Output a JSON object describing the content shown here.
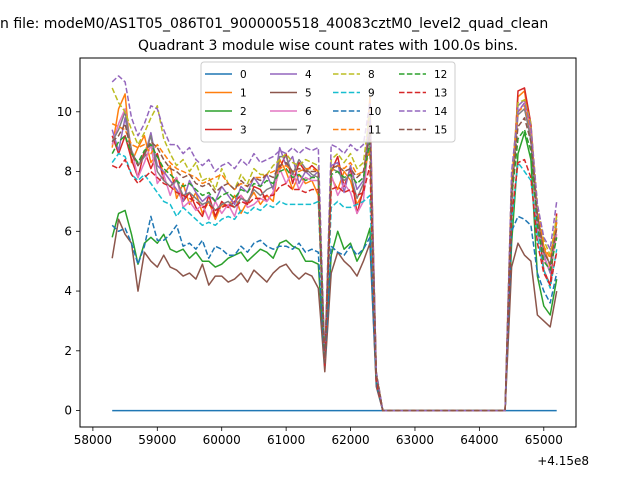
{
  "suptitle": "n file: modeM0/AS1T05_086T01_9000005518_40083cztM0_level2_quad_clean",
  "chart_data": {
    "type": "line",
    "title": "Quadrant 3 module wise count rates with 100.0s bins.",
    "xlabel": "",
    "ylabel": "",
    "offset_text": "+4.15e8",
    "xlim": [
      57800,
      65500
    ],
    "ylim": [
      -0.55,
      11.8
    ],
    "xticks": [
      58000,
      59000,
      60000,
      61000,
      62000,
      63000,
      64000,
      65000
    ],
    "yticks": [
      0,
      2,
      4,
      6,
      8,
      10
    ],
    "grid": false,
    "legend": {
      "placement": "upper center",
      "ncol": 4
    },
    "x": [
      58300,
      58400,
      58500,
      58600,
      58700,
      58800,
      58900,
      59000,
      59100,
      59200,
      59300,
      59400,
      59500,
      59600,
      59700,
      59800,
      59900,
      60000,
      60100,
      60200,
      60300,
      60400,
      60500,
      60600,
      60700,
      60800,
      60900,
      61000,
      61100,
      61200,
      61300,
      61400,
      61500,
      61600,
      61700,
      61800,
      61900,
      62000,
      62100,
      62200,
      62300,
      62400,
      62500,
      62600,
      62700,
      62800,
      62900,
      63000,
      63100,
      63200,
      63300,
      63400,
      63500,
      63600,
      63700,
      63800,
      63900,
      64000,
      64100,
      64200,
      64300,
      64400,
      64500,
      64600,
      64700,
      64800,
      64900,
      65000,
      65100,
      65200
    ],
    "series": [
      {
        "name": "0",
        "color": "#1f77b4",
        "style": "solid",
        "values": [
          0,
          0,
          0,
          0,
          0,
          0,
          0,
          0,
          0,
          0,
          0,
          0,
          0,
          0,
          0,
          0,
          0,
          0,
          0,
          0,
          0,
          0,
          0,
          0,
          0,
          0,
          0,
          0,
          0,
          0,
          0,
          0,
          0,
          0,
          0,
          0,
          0,
          0,
          0,
          0,
          0,
          0,
          0,
          0,
          0,
          0,
          0,
          0,
          0,
          0,
          0,
          0,
          0,
          0,
          0,
          0,
          0,
          0,
          0,
          0,
          0,
          0,
          0,
          0,
          0,
          0,
          0,
          0,
          0,
          0
        ]
      },
      {
        "name": "1",
        "color": "#ff7f0e",
        "style": "solid",
        "values": [
          8.8,
          10.1,
          10.6,
          8.3,
          8.8,
          9.2,
          8.3,
          8.6,
          7.9,
          8.2,
          7.1,
          7.6,
          6.9,
          7.3,
          6.6,
          7.0,
          6.4,
          6.9,
          6.8,
          7.2,
          6.6,
          7.0,
          7.3,
          6.9,
          7.2,
          7.0,
          8.4,
          8.0,
          7.4,
          7.9,
          7.6,
          7.7,
          7.2,
          1.5,
          7.8,
          7.4,
          8.0,
          7.7,
          6.9,
          7.3,
          10.5,
          1.0,
          0,
          0,
          0,
          0,
          0,
          0,
          0,
          0,
          0,
          0,
          0,
          0,
          0,
          0,
          0,
          0,
          0,
          0,
          0,
          0,
          7.5,
          10.5,
          10.7,
          9.2,
          6.5,
          5.5,
          4.8,
          6.1
        ]
      },
      {
        "name": "2",
        "color": "#2ca02c",
        "style": "solid",
        "values": [
          5.8,
          6.6,
          6.7,
          5.9,
          4.9,
          5.6,
          5.8,
          5.6,
          5.9,
          5.4,
          5.3,
          5.4,
          5.1,
          5.3,
          5.0,
          5.0,
          4.8,
          4.9,
          5.1,
          5.2,
          5.3,
          5.0,
          5.2,
          5.4,
          5.3,
          5.1,
          5.6,
          5.7,
          5.5,
          5.4,
          5.0,
          5.0,
          4.9,
          1.5,
          5.2,
          6.0,
          5.4,
          5.6,
          5.0,
          5.4,
          6.1,
          0.9,
          0,
          0,
          0,
          0,
          0,
          0,
          0,
          0,
          0,
          0,
          0,
          0,
          0,
          0,
          0,
          0,
          0,
          0,
          0,
          0,
          5.6,
          8.6,
          9.3,
          8.4,
          4.5,
          3.5,
          3.2,
          4.4
        ]
      },
      {
        "name": "3",
        "color": "#d62728",
        "style": "solid",
        "values": [
          9.2,
          8.6,
          9.2,
          8.4,
          7.8,
          8.7,
          8.1,
          8.6,
          7.7,
          7.5,
          7.8,
          7.0,
          7.3,
          6.8,
          6.5,
          7.2,
          6.5,
          7.0,
          6.8,
          7.0,
          7.2,
          6.9,
          7.5,
          7.4,
          7.0,
          7.3,
          8.1,
          8.6,
          7.6,
          8.3,
          8.0,
          8.2,
          8.0,
          1.4,
          8.0,
          8.5,
          7.5,
          8.1,
          6.6,
          7.4,
          9.8,
          1.2,
          0,
          0,
          0,
          0,
          0,
          0,
          0,
          0,
          0,
          0,
          0,
          0,
          0,
          0,
          0,
          0,
          0,
          0,
          0,
          0,
          6.8,
          10.7,
          10.8,
          9.6,
          6.4,
          4.7,
          4.2,
          6.6
        ]
      },
      {
        "name": "4",
        "color": "#9467bd",
        "style": "solid",
        "values": [
          9.4,
          8.7,
          9.8,
          8.7,
          8.2,
          8.5,
          9.3,
          8.2,
          8.0,
          7.7,
          7.4,
          7.0,
          7.7,
          7.3,
          7.0,
          7.2,
          7.0,
          7.5,
          7.2,
          6.9,
          7.5,
          7.3,
          7.8,
          7.5,
          7.9,
          7.4,
          8.8,
          8.2,
          8.5,
          7.6,
          8.0,
          7.8,
          8.0,
          1.6,
          8.2,
          8.3,
          7.3,
          8.2,
          7.4,
          7.7,
          9.9,
          1.1,
          0,
          0,
          0,
          0,
          0,
          0,
          0,
          0,
          0,
          0,
          0,
          0,
          0,
          0,
          0,
          0,
          0,
          0,
          0,
          0,
          7.3,
          10.2,
          10.4,
          9.0,
          6.0,
          5.2,
          4.6,
          6.4
        ]
      },
      {
        "name": "5",
        "color": "#8c564b",
        "style": "solid",
        "values": [
          5.1,
          6.4,
          5.9,
          5.6,
          4.0,
          5.3,
          5.0,
          4.8,
          5.2,
          4.8,
          4.7,
          4.5,
          4.6,
          4.4,
          4.9,
          4.2,
          4.5,
          4.5,
          4.3,
          4.4,
          4.6,
          4.3,
          4.7,
          4.5,
          4.3,
          4.6,
          4.8,
          4.9,
          4.6,
          4.4,
          4.6,
          4.5,
          4.1,
          1.3,
          4.6,
          5.3,
          5.0,
          4.8,
          4.5,
          5.0,
          5.6,
          0.8,
          0,
          0,
          0,
          0,
          0,
          0,
          0,
          0,
          0,
          0,
          0,
          0,
          0,
          0,
          0,
          0,
          0,
          0,
          0,
          0,
          4.8,
          5.6,
          5.2,
          5.0,
          3.2,
          3.0,
          2.8,
          4.0
        ]
      },
      {
        "name": "6",
        "color": "#e377c2",
        "style": "solid",
        "values": [
          8.9,
          9.6,
          10.1,
          8.7,
          7.8,
          8.3,
          8.9,
          7.6,
          7.9,
          7.2,
          7.8,
          6.8,
          7.0,
          6.7,
          6.9,
          6.4,
          7.0,
          6.6,
          6.9,
          6.5,
          7.2,
          6.8,
          6.9,
          7.1,
          7.0,
          7.3,
          8.1,
          7.6,
          8.0,
          7.4,
          7.8,
          7.7,
          7.7,
          1.7,
          7.9,
          7.2,
          7.6,
          7.3,
          6.6,
          7.0,
          9.6,
          1.1,
          0,
          0,
          0,
          0,
          0,
          0,
          0,
          0,
          0,
          0,
          0,
          0,
          0,
          0,
          0,
          0,
          0,
          0,
          0,
          0,
          7.0,
          10.0,
          10.3,
          9.3,
          6.2,
          5.1,
          4.7,
          5.9
        ]
      },
      {
        "name": "7",
        "color": "#7f7f7f",
        "style": "solid",
        "values": [
          9.0,
          9.4,
          10.0,
          8.7,
          8.2,
          8.5,
          9.2,
          8.0,
          7.7,
          7.5,
          7.7,
          7.2,
          7.3,
          7.1,
          6.9,
          7.0,
          6.7,
          6.9,
          7.0,
          6.8,
          7.1,
          7.0,
          7.4,
          7.2,
          7.4,
          7.5,
          8.5,
          8.5,
          7.9,
          8.4,
          8.1,
          7.9,
          7.8,
          1.6,
          8.1,
          8.0,
          7.7,
          7.9,
          7.1,
          7.6,
          9.4,
          1.2,
          0,
          0,
          0,
          0,
          0,
          0,
          0,
          0,
          0,
          0,
          0,
          0,
          0,
          0,
          0,
          0,
          0,
          0,
          0,
          0,
          7.2,
          9.9,
          10.1,
          9.1,
          6.6,
          5.3,
          4.9,
          6.3
        ]
      },
      {
        "name": "8",
        "color": "#bcbd22",
        "style": "dashed",
        "values": [
          10.8,
          10.3,
          10.0,
          9.4,
          8.9,
          9.3,
          9.8,
          10.2,
          9.1,
          8.6,
          8.2,
          8.4,
          8.0,
          8.3,
          7.7,
          7.8,
          7.4,
          8.1,
          7.6,
          7.4,
          7.9,
          7.6,
          8.1,
          7.9,
          7.9,
          8.2,
          8.4,
          8.6,
          8.3,
          8.2,
          8.4,
          8.3,
          8.2,
          1.6,
          8.4,
          8.6,
          8.3,
          8.6,
          8.1,
          8.3,
          10.0,
          1.3,
          0,
          0,
          0,
          0,
          0,
          0,
          0,
          0,
          0,
          0,
          0,
          0,
          0,
          0,
          0,
          0,
          0,
          0,
          0,
          0,
          7.8,
          10.3,
          10.4,
          9.6,
          6.9,
          5.7,
          5.2,
          6.5
        ]
      },
      {
        "name": "9",
        "color": "#17becf",
        "style": "dashed",
        "values": [
          8.3,
          8.6,
          8.5,
          7.9,
          7.7,
          7.9,
          7.6,
          7.3,
          7.0,
          6.9,
          6.5,
          6.8,
          6.6,
          6.4,
          6.2,
          6.3,
          6.2,
          6.4,
          6.5,
          6.4,
          6.7,
          6.6,
          6.8,
          6.7,
          6.9,
          6.8,
          7.0,
          6.9,
          6.9,
          6.9,
          6.9,
          6.9,
          7.0,
          1.5,
          6.8,
          7.0,
          6.8,
          6.8,
          6.9,
          7.0,
          7.2,
          1.0,
          0,
          0,
          0,
          0,
          0,
          0,
          0,
          0,
          0,
          0,
          0,
          0,
          0,
          0,
          0,
          0,
          0,
          0,
          0,
          0,
          6.3,
          8.3,
          8.0,
          7.7,
          5.8,
          4.7,
          4.1,
          5.4
        ]
      },
      {
        "name": "10",
        "color": "#1f77b4",
        "style": "dashed",
        "values": [
          6.2,
          6.0,
          6.1,
          5.6,
          4.9,
          5.5,
          6.5,
          5.7,
          5.7,
          5.9,
          6.2,
          5.5,
          5.6,
          5.4,
          5.7,
          5.1,
          5.5,
          5.4,
          5.2,
          5.2,
          5.5,
          5.3,
          5.6,
          5.7,
          5.5,
          5.4,
          5.5,
          5.5,
          5.4,
          5.6,
          5.3,
          5.4,
          5.3,
          1.5,
          5.5,
          5.3,
          5.2,
          5.5,
          5.2,
          5.4,
          5.8,
          0.9,
          0,
          0,
          0,
          0,
          0,
          0,
          0,
          0,
          0,
          0,
          0,
          0,
          0,
          0,
          0,
          0,
          0,
          0,
          0,
          0,
          6.0,
          6.5,
          6.4,
          6.2,
          4.6,
          4.0,
          3.6,
          4.6
        ]
      },
      {
        "name": "11",
        "color": "#ff7f0e",
        "style": "dashed",
        "values": [
          9.6,
          9.5,
          9.4,
          8.9,
          8.8,
          8.9,
          8.6,
          8.9,
          8.6,
          8.3,
          8.1,
          8.0,
          7.9,
          7.8,
          7.6,
          7.7,
          7.8,
          7.9,
          7.6,
          7.4,
          7.6,
          7.5,
          7.8,
          7.8,
          7.9,
          8.0,
          8.1,
          8.2,
          8.0,
          8.0,
          8.1,
          8.1,
          8.0,
          1.6,
          8.0,
          8.2,
          8.1,
          8.3,
          7.9,
          8.0,
          8.7,
          1.2,
          0,
          0,
          0,
          0,
          0,
          0,
          0,
          0,
          0,
          0,
          0,
          0,
          0,
          0,
          0,
          0,
          0,
          0,
          0,
          0,
          7.7,
          10.0,
          10.2,
          9.4,
          6.8,
          5.5,
          5.1,
          6.3
        ]
      },
      {
        "name": "12",
        "color": "#2ca02c",
        "style": "dashed",
        "values": [
          8.6,
          9.0,
          9.2,
          8.6,
          8.3,
          8.7,
          8.9,
          8.5,
          8.1,
          7.9,
          7.7,
          7.5,
          7.6,
          7.4,
          7.2,
          7.3,
          7.0,
          7.2,
          7.3,
          7.1,
          7.4,
          7.3,
          7.6,
          7.5,
          7.7,
          7.6,
          8.0,
          8.1,
          7.8,
          7.9,
          7.7,
          7.8,
          7.8,
          1.6,
          7.9,
          8.0,
          7.8,
          7.9,
          7.6,
          7.8,
          9.0,
          1.1,
          0,
          0,
          0,
          0,
          0,
          0,
          0,
          0,
          0,
          0,
          0,
          0,
          0,
          0,
          0,
          0,
          0,
          0,
          0,
          0,
          7.1,
          9.1,
          9.4,
          8.7,
          6.2,
          5.0,
          4.7,
          5.8
        ]
      },
      {
        "name": "13",
        "color": "#d62728",
        "style": "dashed",
        "values": [
          8.2,
          8.1,
          8.4,
          7.9,
          7.6,
          7.8,
          8.0,
          7.8,
          7.6,
          7.5,
          7.3,
          7.2,
          7.1,
          7.0,
          6.8,
          6.9,
          6.7,
          6.8,
          6.9,
          6.8,
          7.0,
          6.9,
          7.1,
          7.1,
          7.2,
          7.2,
          7.5,
          7.6,
          7.4,
          7.4,
          7.3,
          7.4,
          7.4,
          1.5,
          7.4,
          7.5,
          7.3,
          7.4,
          7.2,
          7.3,
          8.2,
          1.0,
          0,
          0,
          0,
          0,
          0,
          0,
          0,
          0,
          0,
          0,
          0,
          0,
          0,
          0,
          0,
          0,
          0,
          0,
          0,
          0,
          6.5,
          8.3,
          8.4,
          7.8,
          5.6,
          4.6,
          4.2,
          5.3
        ]
      },
      {
        "name": "14",
        "color": "#9467bd",
        "style": "dashed",
        "values": [
          11.0,
          11.2,
          11.0,
          9.8,
          9.2,
          9.6,
          10.2,
          10.1,
          9.4,
          8.9,
          8.9,
          8.6,
          8.8,
          8.4,
          8.2,
          8.4,
          8.0,
          8.2,
          8.3,
          8.1,
          8.4,
          8.2,
          8.6,
          8.3,
          8.4,
          8.5,
          8.7,
          8.6,
          8.8,
          8.6,
          8.8,
          8.7,
          8.8,
          1.7,
          8.9,
          8.8,
          8.6,
          8.9,
          8.7,
          8.9,
          10.3,
          1.3,
          0,
          0,
          0,
          0,
          0,
          0,
          0,
          0,
          0,
          0,
          0,
          0,
          0,
          0,
          0,
          0,
          0,
          0,
          0,
          0,
          8.0,
          10.0,
          10.3,
          9.5,
          6.9,
          5.8,
          5.4,
          7.0
        ]
      },
      {
        "name": "15",
        "color": "#8c564b",
        "style": "dashed",
        "values": [
          9.0,
          9.2,
          9.6,
          8.6,
          8.2,
          8.6,
          9.0,
          8.8,
          8.4,
          8.1,
          8.0,
          7.8,
          7.9,
          7.6,
          7.5,
          7.6,
          7.3,
          7.5,
          7.6,
          7.4,
          7.7,
          7.5,
          7.8,
          7.7,
          7.9,
          7.8,
          8.2,
          8.3,
          8.0,
          8.1,
          8.0,
          8.0,
          8.0,
          1.6,
          8.1,
          8.2,
          8.0,
          8.1,
          7.8,
          8.0,
          9.3,
          1.2,
          0,
          0,
          0,
          0,
          0,
          0,
          0,
          0,
          0,
          0,
          0,
          0,
          0,
          0,
          0,
          0,
          0,
          0,
          0,
          0,
          7.4,
          9.5,
          9.8,
          9.0,
          6.5,
          5.3,
          4.9,
          6.1
        ]
      }
    ]
  }
}
